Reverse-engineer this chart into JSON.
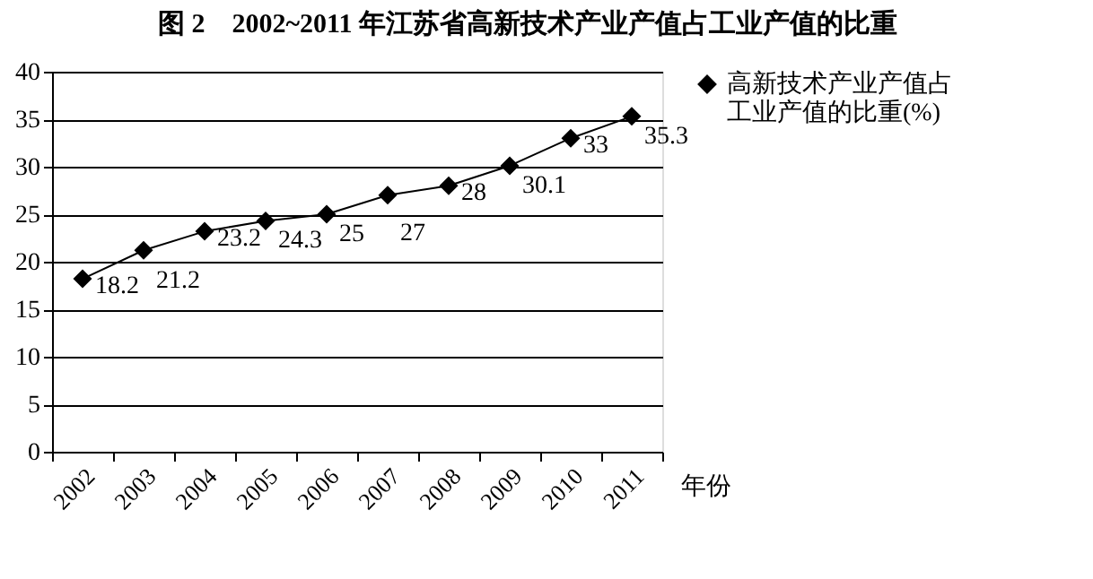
{
  "chart_data": {
    "type": "line",
    "title": "图 2　2002~2011 年江苏省高新技术产业产值占工业产值的比重",
    "xlabel": "年份",
    "categories": [
      "2002",
      "2003",
      "2004",
      "2005",
      "2006",
      "2007",
      "2008",
      "2009",
      "2010",
      "2011"
    ],
    "series": [
      {
        "name": "高新技术产业产值占工业产值的比重(%)",
        "color": "#000000",
        "values": [
          18.2,
          21.2,
          23.2,
          24.3,
          25,
          27,
          28,
          30.1,
          33,
          35.3
        ]
      }
    ],
    "ylim": [
      0,
      40
    ],
    "yticks": [
      0,
      5,
      10,
      15,
      20,
      25,
      30,
      35,
      40
    ],
    "grid": "y",
    "legend": "right",
    "marker": "diamond",
    "line_style": "solid",
    "data_labels": true
  }
}
